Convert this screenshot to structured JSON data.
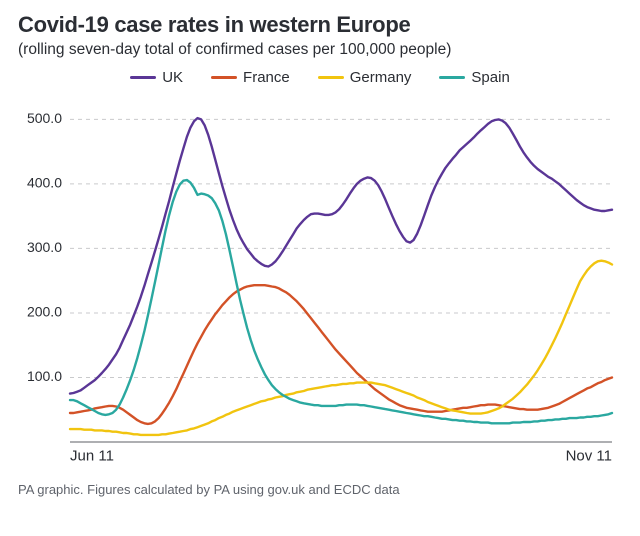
{
  "title": "Covid-19 case rates in western Europe",
  "subtitle": "(rolling seven-day total of confirmed cases per 100,000 people)",
  "source": "PA graphic. Figures calculated by PA using gov.uk and ECDC data",
  "chart": {
    "type": "line",
    "background_color": "#ffffff",
    "grid_color": "#c9cacc",
    "grid_dash": "4 4",
    "axis_color": "#7d7f84",
    "line_width": 2.4,
    "title_fontsize": 22,
    "subtitle_fontsize": 15.5,
    "source_fontsize": 13,
    "label_fontsize": 15,
    "tick_fontsize": 14,
    "ylim": [
      0,
      530
    ],
    "yticks": [
      100.0,
      200.0,
      300.0,
      400.0,
      500.0
    ],
    "ytick_labels": [
      "100.0",
      "200.0",
      "300.0",
      "400.0",
      "500.0"
    ],
    "x_start_label": "Jun 11",
    "x_end_label": "Nov 11",
    "x_count": 154,
    "legend_position": "top-center",
    "series": [
      {
        "name": "UK",
        "color": "#5a3696",
        "values": [
          75,
          76,
          78,
          80,
          84,
          88,
          92,
          96,
          101,
          107,
          113,
          120,
          128,
          136,
          146,
          158,
          170,
          182,
          196,
          210,
          225,
          242,
          260,
          278,
          296,
          315,
          334,
          354,
          374,
          395,
          416,
          436,
          455,
          473,
          487,
          497,
          502,
          500,
          491,
          476,
          458,
          438,
          417,
          397,
          378,
          360,
          344,
          330,
          318,
          308,
          299,
          292,
          285,
          280,
          276,
          273,
          272,
          275,
          280,
          287,
          295,
          304,
          313,
          322,
          331,
          338,
          344,
          349,
          353,
          354,
          354,
          353,
          352,
          352,
          353,
          356,
          361,
          368,
          376,
          385,
          393,
          400,
          405,
          408,
          410,
          409,
          405,
          398,
          388,
          376,
          363,
          350,
          338,
          327,
          318,
          311,
          309,
          313,
          323,
          336,
          351,
          367,
          382,
          395,
          406,
          416,
          425,
          432,
          439,
          445,
          452,
          457,
          462,
          467,
          472,
          478,
          483,
          488,
          493,
          497,
          499,
          500,
          498,
          494,
          487,
          478,
          468,
          458,
          449,
          441,
          434,
          428,
          423,
          419,
          415,
          411,
          408,
          404,
          400,
          395,
          390,
          385,
          380,
          375,
          371,
          367,
          364,
          362,
          360,
          359,
          358,
          358,
          359,
          360
        ]
      },
      {
        "name": "France",
        "color": "#d35227",
        "values": [
          45,
          45,
          46,
          47,
          48,
          49,
          50,
          52,
          53,
          54,
          55,
          56,
          56,
          55,
          53,
          50,
          46,
          42,
          38,
          34,
          31,
          29,
          28,
          29,
          32,
          37,
          44,
          52,
          61,
          71,
          82,
          94,
          106,
          118,
          130,
          142,
          153,
          163,
          173,
          182,
          190,
          198,
          205,
          212,
          218,
          224,
          229,
          233,
          236,
          239,
          241,
          242,
          243,
          243,
          243,
          243,
          242,
          241,
          240,
          238,
          235,
          232,
          228,
          223,
          218,
          212,
          206,
          199,
          192,
          185,
          178,
          171,
          164,
          157,
          150,
          143,
          137,
          131,
          125,
          119,
          113,
          107,
          102,
          97,
          92,
          87,
          82,
          78,
          74,
          70,
          66,
          63,
          60,
          57,
          55,
          53,
          52,
          51,
          50,
          49,
          48,
          47,
          47,
          47,
          47,
          47,
          48,
          49,
          50,
          51,
          52,
          53,
          53,
          54,
          55,
          56,
          57,
          57,
          58,
          58,
          58,
          57,
          56,
          55,
          54,
          53,
          52,
          51,
          51,
          50,
          50,
          50,
          50,
          51,
          52,
          53,
          55,
          57,
          59,
          62,
          65,
          68,
          71,
          74,
          77,
          80,
          83,
          85,
          88,
          91,
          93,
          96,
          98,
          100
        ]
      },
      {
        "name": "Germany",
        "color": "#f1c40f",
        "values": [
          20,
          20,
          20,
          20,
          19,
          19,
          19,
          18,
          18,
          18,
          17,
          17,
          16,
          16,
          15,
          14,
          14,
          13,
          12,
          12,
          11,
          11,
          11,
          11,
          11,
          11,
          12,
          12,
          13,
          14,
          15,
          16,
          17,
          18,
          20,
          21,
          23,
          25,
          27,
          29,
          32,
          34,
          37,
          39,
          42,
          44,
          47,
          49,
          51,
          53,
          55,
          57,
          59,
          61,
          63,
          64,
          66,
          67,
          69,
          70,
          71,
          73,
          74,
          75,
          77,
          78,
          79,
          81,
          82,
          83,
          84,
          85,
          86,
          87,
          88,
          88,
          89,
          90,
          90,
          91,
          91,
          92,
          92,
          92,
          92,
          92,
          91,
          90,
          89,
          88,
          86,
          84,
          82,
          80,
          78,
          76,
          74,
          72,
          69,
          67,
          65,
          62,
          60,
          58,
          56,
          54,
          52,
          50,
          49,
          48,
          47,
          46,
          45,
          44,
          44,
          44,
          44,
          45,
          46,
          48,
          50,
          52,
          55,
          59,
          63,
          67,
          72,
          77,
          83,
          89,
          96,
          103,
          111,
          120,
          129,
          139,
          150,
          161,
          173,
          185,
          198,
          211,
          224,
          237,
          249,
          258,
          266,
          272,
          277,
          280,
          281,
          280,
          278,
          275
        ]
      },
      {
        "name": "Spain",
        "color": "#2aa8a0",
        "values": [
          65,
          65,
          63,
          60,
          57,
          54,
          51,
          48,
          45,
          43,
          42,
          43,
          45,
          50,
          58,
          69,
          82,
          96,
          112,
          130,
          150,
          172,
          196,
          222,
          248,
          275,
          302,
          328,
          352,
          372,
          388,
          399,
          405,
          406,
          402,
          394,
          383,
          385,
          384,
          382,
          378,
          370,
          359,
          343,
          322,
          298,
          272,
          246,
          221,
          198,
          177,
          158,
          142,
          128,
          116,
          105,
          96,
          88,
          82,
          77,
          73,
          70,
          67,
          65,
          63,
          61,
          60,
          59,
          58,
          57,
          57,
          56,
          56,
          56,
          56,
          56,
          57,
          57,
          58,
          58,
          58,
          58,
          57,
          57,
          56,
          55,
          54,
          53,
          52,
          51,
          50,
          49,
          48,
          47,
          46,
          45,
          44,
          43,
          42,
          41,
          40,
          40,
          39,
          38,
          37,
          36,
          36,
          35,
          34,
          34,
          33,
          33,
          32,
          32,
          31,
          31,
          30,
          30,
          30,
          29,
          29,
          29,
          29,
          29,
          29,
          30,
          30,
          30,
          31,
          31,
          31,
          32,
          32,
          33,
          33,
          34,
          34,
          35,
          35,
          36,
          36,
          37,
          37,
          37,
          38,
          38,
          39,
          39,
          40,
          40,
          41,
          42,
          43,
          45
        ]
      }
    ]
  }
}
